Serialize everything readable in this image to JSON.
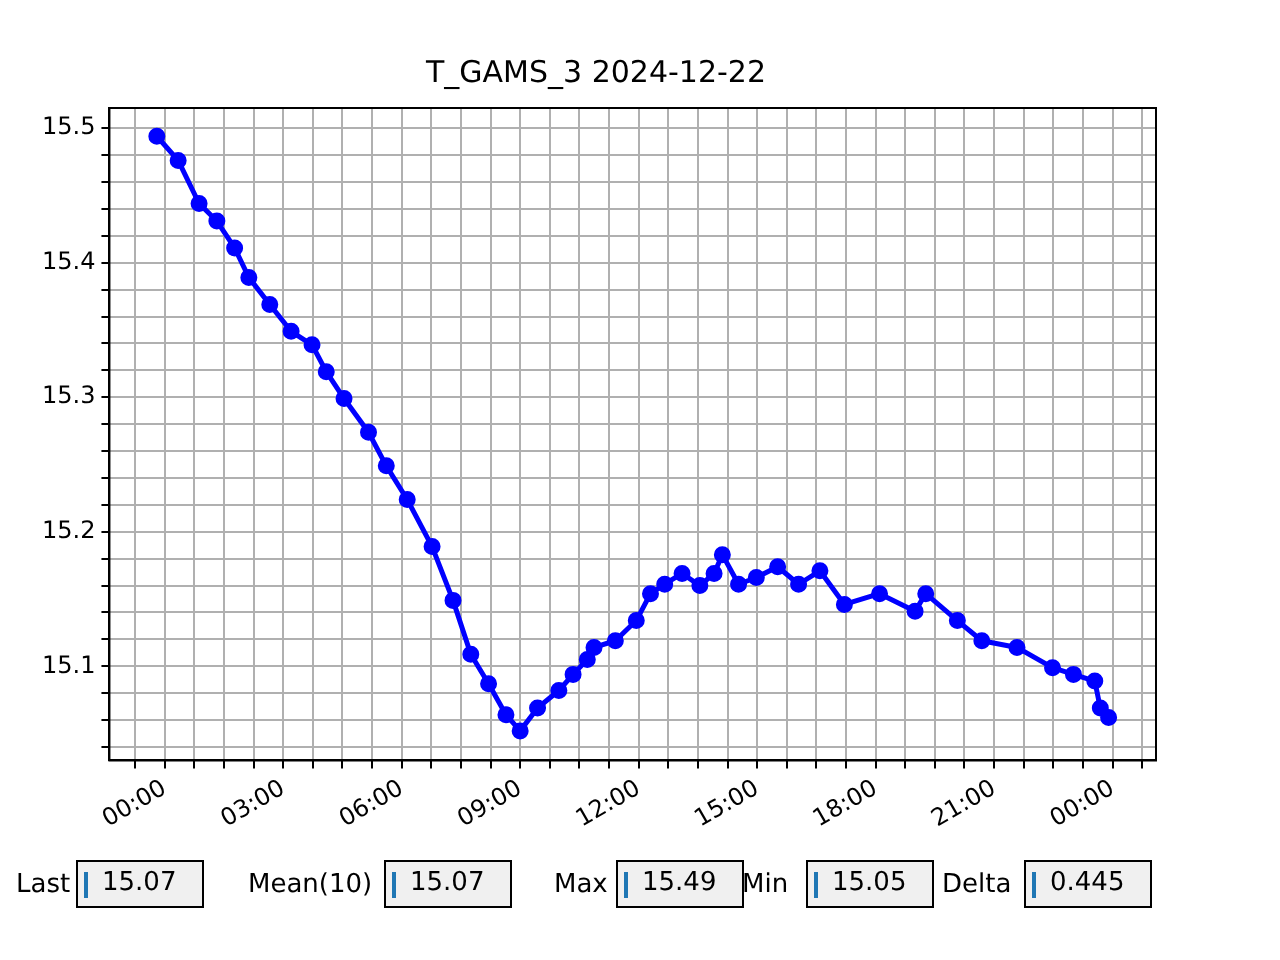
{
  "chart_data": {
    "type": "line",
    "title": "T_GAMS_3 2024-12-22",
    "x": [
      -0.2,
      0.34,
      0.87,
      1.32,
      1.77,
      2.13,
      2.66,
      3.2,
      3.73,
      4.09,
      4.54,
      5.16,
      5.61,
      6.14,
      6.77,
      7.3,
      7.75,
      8.2,
      8.64,
      9.0,
      9.44,
      9.98,
      10.34,
      10.7,
      10.87,
      11.41,
      11.94,
      12.3,
      12.66,
      13.1,
      13.55,
      13.91,
      14.12,
      14.53,
      14.98,
      15.52,
      16.05,
      16.59,
      17.21,
      18.1,
      19.0,
      19.27,
      20.07,
      20.69,
      21.58,
      22.48,
      23.01,
      23.55,
      23.69,
      23.9
    ],
    "values": [
      15.494,
      15.476,
      15.444,
      15.431,
      15.411,
      15.389,
      15.369,
      15.349,
      15.339,
      15.319,
      15.299,
      15.274,
      15.249,
      15.224,
      15.189,
      15.149,
      15.109,
      15.087,
      15.064,
      15.052,
      15.069,
      15.082,
      15.094,
      15.105,
      15.114,
      15.119,
      15.134,
      15.154,
      15.161,
      15.169,
      15.16,
      15.169,
      15.183,
      15.161,
      15.166,
      15.174,
      15.161,
      15.171,
      15.146,
      15.154,
      15.141,
      15.154,
      15.134,
      15.119,
      15.114,
      15.099,
      15.094,
      15.089,
      15.069,
      15.062
    ],
    "color": "#0000ff",
    "marker": "circle",
    "line_style": "solid",
    "grid": true,
    "legend": false,
    "xlim": [
      -1.4,
      25.1
    ],
    "xticks": [
      {
        "value": -0.75,
        "label": null
      },
      {
        "value": 0,
        "label": "00:00"
      },
      {
        "value": 0.75,
        "label": null
      },
      {
        "value": 1.5,
        "label": null
      },
      {
        "value": 2.25,
        "label": null
      },
      {
        "value": 3,
        "label": "03:00"
      },
      {
        "value": 3.75,
        "label": null
      },
      {
        "value": 4.5,
        "label": null
      },
      {
        "value": 5.25,
        "label": null
      },
      {
        "value": 6,
        "label": "06:00"
      },
      {
        "value": 6.75,
        "label": null
      },
      {
        "value": 7.5,
        "label": null
      },
      {
        "value": 8.25,
        "label": null
      },
      {
        "value": 9,
        "label": "09:00"
      },
      {
        "value": 9.75,
        "label": null
      },
      {
        "value": 10.5,
        "label": null
      },
      {
        "value": 11.25,
        "label": null
      },
      {
        "value": 12,
        "label": "12:00"
      },
      {
        "value": 12.75,
        "label": null
      },
      {
        "value": 13.5,
        "label": null
      },
      {
        "value": 14.25,
        "label": null
      },
      {
        "value": 15,
        "label": "15:00"
      },
      {
        "value": 15.75,
        "label": null
      },
      {
        "value": 16.5,
        "label": null
      },
      {
        "value": 17.25,
        "label": null
      },
      {
        "value": 18,
        "label": "18:00"
      },
      {
        "value": 18.75,
        "label": null
      },
      {
        "value": 19.5,
        "label": null
      },
      {
        "value": 20.25,
        "label": null
      },
      {
        "value": 21,
        "label": "21:00"
      },
      {
        "value": 21.75,
        "label": null
      },
      {
        "value": 22.5,
        "label": null
      },
      {
        "value": 23.25,
        "label": null
      },
      {
        "value": 24,
        "label": "00:00"
      },
      {
        "value": 24.75,
        "label": null
      }
    ],
    "ylim": [
      15.03,
      15.515
    ],
    "yticks": [
      {
        "value": 15.04,
        "label": null
      },
      {
        "value": 15.06,
        "label": null
      },
      {
        "value": 15.08,
        "label": null
      },
      {
        "value": 15.1,
        "label": "15.1"
      },
      {
        "value": 15.12,
        "label": null
      },
      {
        "value": 15.14,
        "label": null
      },
      {
        "value": 15.16,
        "label": null
      },
      {
        "value": 15.18,
        "label": null
      },
      {
        "value": 15.2,
        "label": "15.2"
      },
      {
        "value": 15.22,
        "label": null
      },
      {
        "value": 15.24,
        "label": null
      },
      {
        "value": 15.26,
        "label": null
      },
      {
        "value": 15.28,
        "label": null
      },
      {
        "value": 15.3,
        "label": "15.3"
      },
      {
        "value": 15.32,
        "label": null
      },
      {
        "value": 15.34,
        "label": null
      },
      {
        "value": 15.36,
        "label": null
      },
      {
        "value": 15.38,
        "label": null
      },
      {
        "value": 15.4,
        "label": "15.4"
      },
      {
        "value": 15.42,
        "label": null
      },
      {
        "value": 15.44,
        "label": null
      },
      {
        "value": 15.46,
        "label": null
      },
      {
        "value": 15.48,
        "label": null
      },
      {
        "value": 15.5,
        "label": "15.5"
      }
    ],
    "annotations": [
      "Last",
      "15.07",
      "Mean(10)",
      "15.07",
      "Max",
      "15.49",
      "Min",
      "15.05",
      "Delta",
      "0.445"
    ]
  }
}
